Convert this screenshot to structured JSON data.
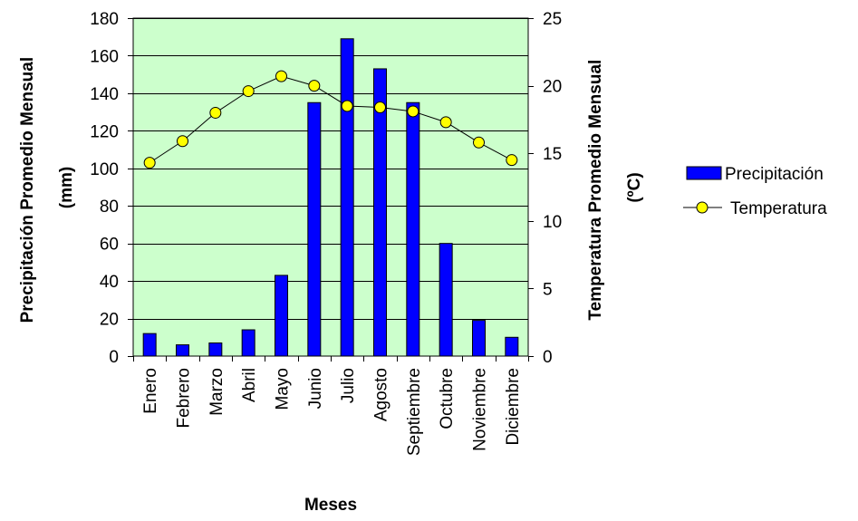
{
  "chart_data": {
    "type": "bar",
    "categories": [
      "Enero",
      "Febrero",
      "Marzo",
      "Abril",
      "Mayo",
      "Junio",
      "Julio",
      "Agosto",
      "Septiembre",
      "Octubre",
      "Noviembre",
      "Diciembre"
    ],
    "series": [
      {
        "name": "Precipitación",
        "type": "bar",
        "axis": "left",
        "color": "#0000ff",
        "values": [
          12,
          6,
          7,
          14,
          43,
          135,
          169,
          153,
          135,
          60,
          19,
          10
        ]
      },
      {
        "name": "Temperatura",
        "type": "line",
        "axis": "right",
        "color": "#ffff00",
        "values": [
          14.3,
          15.9,
          18.0,
          19.6,
          20.7,
          20.0,
          18.5,
          18.4,
          18.1,
          17.3,
          15.8,
          14.5
        ]
      }
    ],
    "xlabel": "Meses",
    "ylabel": "Precipitación Promedio Mensual (mm)",
    "ylabel_lines": [
      "Precipitación Promedio Mensual",
      "(mm)"
    ],
    "y2label": "Temperatura Promedio Mensual (ºC)",
    "y2label_lines": [
      "Temperatura Promedio Mensual",
      "(ºC)"
    ],
    "ylim": [
      0,
      180
    ],
    "yticks": [
      0,
      20,
      40,
      60,
      80,
      100,
      120,
      140,
      160,
      180
    ],
    "y2lim": [
      0,
      25
    ],
    "y2ticks": [
      0,
      5,
      10,
      15,
      20,
      25
    ],
    "grid": true,
    "plot_background": "#ccffcc",
    "legend_position": "right"
  }
}
